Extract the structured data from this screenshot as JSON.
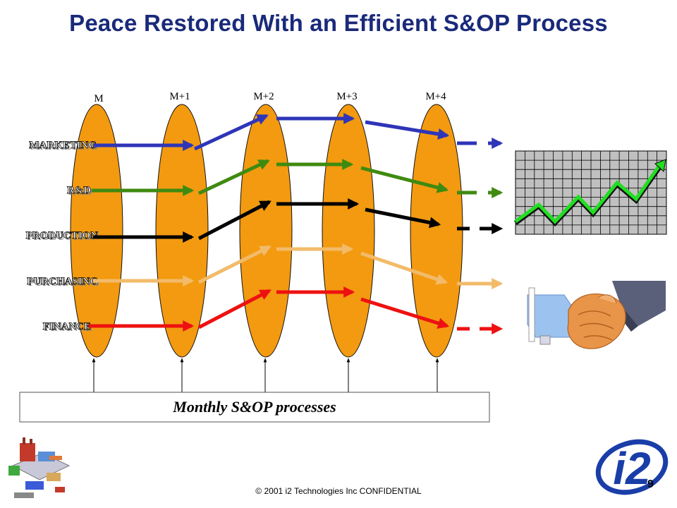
{
  "title": "Peace Restored With an Efficient S&OP Process",
  "months": [
    "M",
    "M+1",
    "M+2",
    "M+3",
    "M+4"
  ],
  "departments": [
    {
      "label": "MARKETING",
      "color": "#2e35b8"
    },
    {
      "label": "R&D",
      "color": "#3f8a10"
    },
    {
      "label": "PRODUCTION",
      "color": "#000000"
    },
    {
      "label": "PURCHASING",
      "color": "#f2bb6a"
    },
    {
      "label": "FINANCE",
      "color": "#ee1111"
    }
  ],
  "process_label": "Monthly S&OP processes",
  "footer": "© 2001 i2 Technologies Inc CONFIDENTIAL",
  "page_number": "9",
  "logo_text": "i2",
  "colors": {
    "title": "#1a2a7a",
    "ellipse": "#f39a10",
    "logo": "#1a3ea8"
  }
}
